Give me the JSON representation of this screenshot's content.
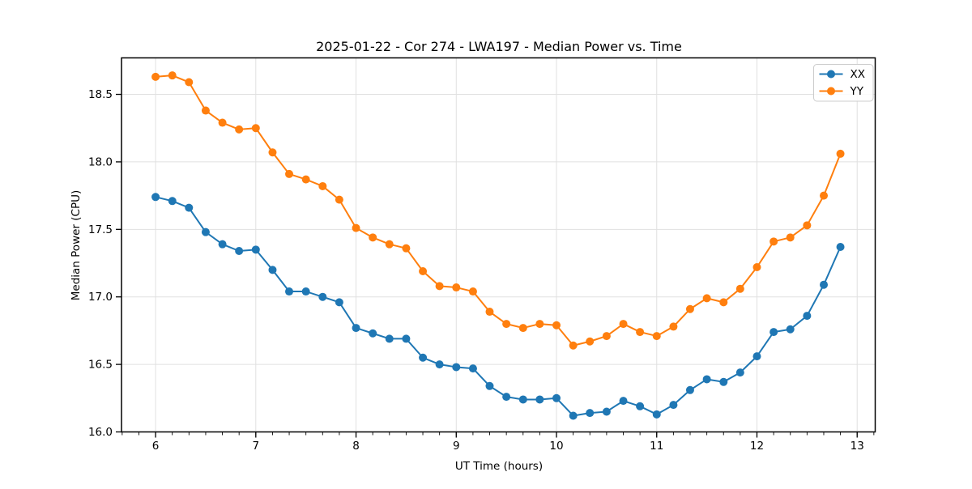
{
  "chart_data": {
    "type": "line",
    "title": "2025-01-22 - Cor 274 - LWA197 - Median Power vs. Time",
    "xlabel": "UT Time (hours)",
    "ylabel": "Median Power (CPU)",
    "xlim": [
      5.66,
      13.18
    ],
    "ylim": [
      16.0,
      18.77
    ],
    "xticks": [
      6,
      7,
      8,
      9,
      10,
      11,
      12,
      13
    ],
    "yticks": [
      16.0,
      16.5,
      17.0,
      17.5,
      18.0,
      18.5
    ],
    "x_minor_step": 0.1666667,
    "grid": true,
    "legend_position": "upper right",
    "x": [
      6.0,
      6.167,
      6.333,
      6.5,
      6.667,
      6.833,
      7.0,
      7.167,
      7.333,
      7.5,
      7.667,
      7.833,
      8.0,
      8.167,
      8.333,
      8.5,
      8.667,
      8.833,
      9.0,
      9.167,
      9.333,
      9.5,
      9.667,
      9.833,
      10.0,
      10.167,
      10.333,
      10.5,
      10.667,
      10.833,
      11.0,
      11.167,
      11.333,
      11.5,
      11.667,
      11.833,
      12.0,
      12.167,
      12.333,
      12.5,
      12.667,
      12.833
    ],
    "series": [
      {
        "name": "XX",
        "color": "#1f77b4",
        "values": [
          17.74,
          17.71,
          17.66,
          17.48,
          17.39,
          17.34,
          17.35,
          17.2,
          17.04,
          17.04,
          17.0,
          16.96,
          16.77,
          16.73,
          16.69,
          16.69,
          16.55,
          16.5,
          16.48,
          16.47,
          16.34,
          16.26,
          16.24,
          16.24,
          16.25,
          16.12,
          16.14,
          16.15,
          16.23,
          16.19,
          16.13,
          16.2,
          16.31,
          16.39,
          16.37,
          16.44,
          16.56,
          16.74,
          16.76,
          16.86,
          17.09,
          17.37
        ]
      },
      {
        "name": "YY",
        "color": "#ff7f0e",
        "values": [
          18.63,
          18.64,
          18.59,
          18.38,
          18.29,
          18.24,
          18.25,
          18.07,
          17.91,
          17.87,
          17.82,
          17.72,
          17.51,
          17.44,
          17.39,
          17.36,
          17.19,
          17.08,
          17.07,
          17.04,
          16.89,
          16.8,
          16.77,
          16.8,
          16.79,
          16.64,
          16.67,
          16.71,
          16.8,
          16.74,
          16.71,
          16.78,
          16.91,
          16.99,
          16.96,
          17.06,
          17.22,
          17.41,
          17.44,
          17.53,
          17.75,
          18.06
        ]
      }
    ]
  },
  "style": {
    "background": "#ffffff",
    "grid_color": "#e0e0e0",
    "spine_color": "#000000",
    "tick_color": "#000000",
    "text_color": "#000000",
    "legend_border_color": "#cccccc",
    "legend_background": "rgba(255,255,255,0.85)",
    "line_width": 2,
    "marker_radius": 5
  }
}
